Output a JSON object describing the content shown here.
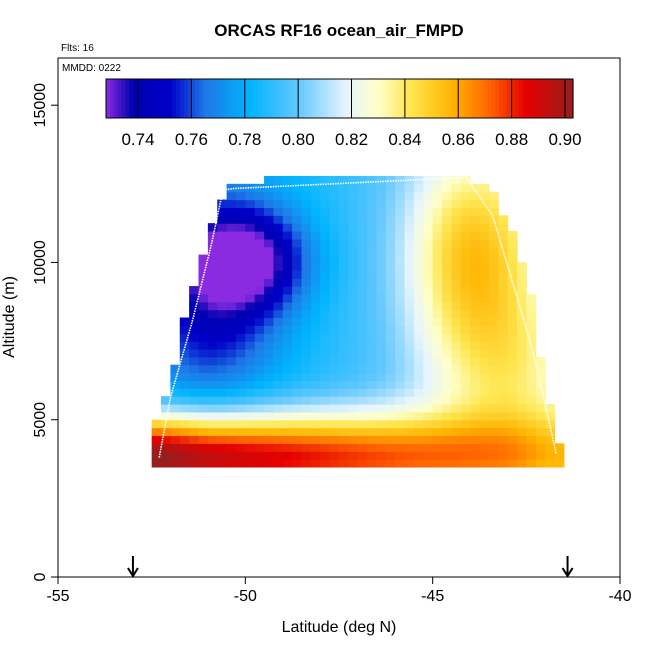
{
  "chart_data": {
    "type": "heatmap",
    "title": "ORCAS RF16 ocean_air_FMPD",
    "annotations": {
      "flights": "Flts: 16",
      "date": "MMDD: 0222"
    },
    "xlabel": "Latitude (deg N)",
    "ylabel": "Altitude (m)",
    "xlim": [
      -55,
      -40
    ],
    "ylim": [
      0,
      16500
    ],
    "x_ticks": [
      -55,
      -50,
      -45,
      -40
    ],
    "x_tick_labels": [
      "-55",
      "-50",
      "-45",
      "-40"
    ],
    "y_ticks": [
      0,
      5000,
      10000,
      15000
    ],
    "y_tick_labels": [
      "0",
      "5000",
      "10000",
      "15000"
    ],
    "colorbar": {
      "range": [
        0.728,
        0.903
      ],
      "ticks": [
        0.74,
        0.76,
        0.78,
        0.8,
        0.82,
        0.84,
        0.86,
        0.88,
        0.9
      ],
      "tick_labels": [
        "0.74",
        "0.76",
        "0.78",
        "0.80",
        "0.82",
        "0.84",
        "0.86",
        "0.88",
        "0.90"
      ],
      "stops": [
        {
          "v": 0.728,
          "c": "#8a2be2"
        },
        {
          "v": 0.738,
          "c": "#0000b0"
        },
        {
          "v": 0.752,
          "c": "#0000c8"
        },
        {
          "v": 0.765,
          "c": "#1e78e6"
        },
        {
          "v": 0.782,
          "c": "#00b4ff"
        },
        {
          "v": 0.8,
          "c": "#64c8ff"
        },
        {
          "v": 0.818,
          "c": "#e6f5ff"
        },
        {
          "v": 0.83,
          "c": "#ffffc8"
        },
        {
          "v": 0.842,
          "c": "#ffe650"
        },
        {
          "v": 0.858,
          "c": "#ffb400"
        },
        {
          "v": 0.872,
          "c": "#ff6400"
        },
        {
          "v": 0.885,
          "c": "#e60000"
        },
        {
          "v": 0.903,
          "c": "#961e1e"
        }
      ]
    },
    "field": {
      "lat_start": -52.5,
      "lat_end": -41.5,
      "lat_step": 0.25,
      "alt_start": 3500,
      "alt_end": 12750,
      "alt_step": 250,
      "envelope": [
        {
          "alt": 3500,
          "west": -52.5,
          "east": -41.5
        },
        {
          "alt": 4750,
          "west": -52.5,
          "east": -41.7
        },
        {
          "alt": 5000,
          "west": -52.25,
          "east": -41.8
        },
        {
          "alt": 5500,
          "west": -52.25,
          "east": -41.9
        },
        {
          "alt": 6000,
          "west": -52.0,
          "east": -42.0
        },
        {
          "alt": 7500,
          "west": -51.75,
          "east": -42.2
        },
        {
          "alt": 8750,
          "west": -51.5,
          "east": -42.3
        },
        {
          "alt": 9750,
          "west": -51.25,
          "east": -42.6
        },
        {
          "alt": 10750,
          "west": -51.0,
          "east": -42.8
        },
        {
          "alt": 11750,
          "west": -50.75,
          "east": -43.2
        },
        {
          "alt": 12250,
          "west": -50.5,
          "east": -43.4
        },
        {
          "alt": 12500,
          "west": -50.5,
          "east": -43.8
        },
        {
          "alt": 12750,
          "west": -48.5,
          "east": -44.0
        }
      ]
    },
    "flight_track": [
      {
        "lat": -52.3,
        "alt": 3800
      },
      {
        "lat": -52.0,
        "alt": 5700
      },
      {
        "lat": -51.4,
        "alt": 8200
      },
      {
        "lat": -50.9,
        "alt": 10600
      },
      {
        "lat": -50.6,
        "alt": 12300
      },
      {
        "lat": -50.3,
        "alt": 12350
      },
      {
        "lat": -44.1,
        "alt": 12700
      },
      {
        "lat": -43.4,
        "alt": 11500
      },
      {
        "lat": -42.9,
        "alt": 9500
      },
      {
        "lat": -42.4,
        "alt": 7500
      },
      {
        "lat": -42.0,
        "alt": 5500
      },
      {
        "lat": -41.7,
        "alt": 3900
      }
    ],
    "markers": [
      {
        "lat": -53.0,
        "symbol": "down-arrow"
      },
      {
        "lat": -41.4,
        "symbol": "down-arrow"
      }
    ],
    "grid": false
  }
}
